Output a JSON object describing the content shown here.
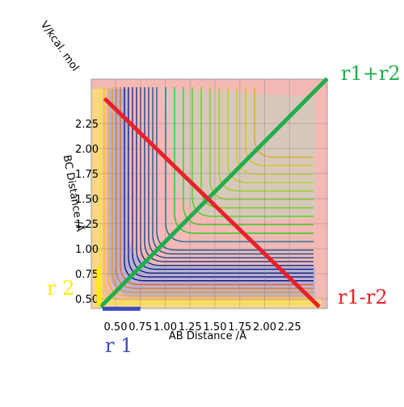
{
  "chart_data": {
    "type": "line",
    "xlabel": "AB Distance /Å",
    "ylabel": "BC Distance /Å",
    "zlabel": "V/kcal. mol",
    "xlim": [
      0.35,
      2.63
    ],
    "ylim": [
      0.42,
      2.68
    ],
    "xticks": [
      {
        "value": 0.5,
        "label": "0.50"
      },
      {
        "value": 0.75,
        "label": "0.75"
      },
      {
        "value": 1.0,
        "label": "1.00"
      },
      {
        "value": 1.25,
        "label": "1.25"
      },
      {
        "value": 1.5,
        "label": "1.50"
      },
      {
        "value": 1.75,
        "label": "1.75"
      },
      {
        "value": 2.0,
        "label": "2.00"
      },
      {
        "value": 2.25,
        "label": "2.25"
      }
    ],
    "yticks": [
      {
        "value": 0.5,
        "label": "0.50"
      },
      {
        "value": 0.75,
        "label": "0.75"
      },
      {
        "value": 1.0,
        "label": "1.00"
      },
      {
        "value": 1.25,
        "label": "1.25"
      },
      {
        "value": 1.5,
        "label": "1.50"
      },
      {
        "value": 1.75,
        "label": "1.75"
      },
      {
        "value": 2.0,
        "label": "2.00"
      },
      {
        "value": 2.25,
        "label": "2.25"
      }
    ],
    "series": [
      {
        "name": "r1+r2",
        "color": "#1fae4b",
        "x": [
          0.35,
          2.63
        ],
        "values": [
          0.42,
          2.7
        ]
      },
      {
        "name": "r1-r2",
        "color": "#e8202a",
        "x": [
          0.39,
          2.55
        ],
        "values": [
          2.5,
          0.42
        ]
      },
      {
        "name": "r 1",
        "color": "#3b4cc0",
        "x": [
          0.37,
          0.75
        ],
        "values": [
          0.4,
          0.4
        ]
      },
      {
        "name": "r 2",
        "color": "#ffee00",
        "x": [
          0.33,
          0.33
        ],
        "values": [
          0.82,
          0.43
        ]
      }
    ]
  }
}
